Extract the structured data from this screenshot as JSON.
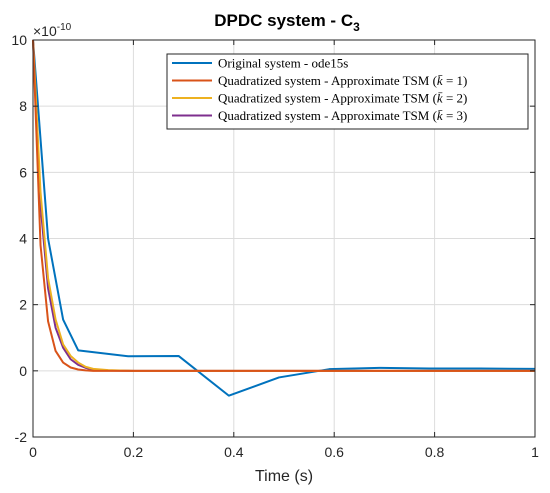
{
  "chart_data": {
    "type": "line",
    "title": "DPDC system - C",
    "title_subscript": "3",
    "xlabel": "Time (s)",
    "ylabel": "",
    "y_multiplier": {
      "base": "×10",
      "exponent": "-10"
    },
    "xlim": [
      0,
      1
    ],
    "ylim": [
      -2,
      10
    ],
    "xticks": [
      0,
      0.2,
      0.4,
      0.6,
      0.8,
      1
    ],
    "xtick_labels": [
      "0",
      "0.2",
      "0.4",
      "0.6",
      "0.8",
      "1"
    ],
    "yticks": [
      -2,
      0,
      2,
      4,
      6,
      8,
      10
    ],
    "ytick_labels": [
      "-2",
      "0",
      "2",
      "4",
      "6",
      "8",
      "10"
    ],
    "grid": true,
    "legend_position": "top-right",
    "series": [
      {
        "name": "Original system - ode15s",
        "color": "#0072BD",
        "x": [
          0,
          0.03,
          0.06,
          0.09,
          0.19,
          0.29,
          0.39,
          0.49,
          0.59,
          0.69,
          0.79,
          0.89,
          1.0
        ],
        "y": [
          10,
          4.0,
          1.55,
          0.62,
          0.44,
          0.45,
          -0.75,
          -0.2,
          0.05,
          0.09,
          0.07,
          0.07,
          0.06
        ]
      },
      {
        "name": "Quadratized system - Approximate TSM (k = 1)",
        "kbar": "1",
        "color": "#D95319",
        "x": [
          0,
          0.015,
          0.03,
          0.045,
          0.06,
          0.075,
          0.09,
          0.105,
          0.12,
          0.15,
          0.2,
          0.3,
          0.5,
          0.7,
          1.0
        ],
        "y": [
          10,
          3.8,
          1.5,
          0.6,
          0.25,
          0.1,
          0.04,
          0.015,
          0.0,
          0.0,
          0.0,
          0.0,
          0.0,
          0.0,
          0.0
        ]
      },
      {
        "name": "Quadratized system - Approximate TSM (k = 2)",
        "kbar": "2",
        "color": "#EDB120",
        "x": [
          0,
          0.015,
          0.03,
          0.045,
          0.06,
          0.075,
          0.09,
          0.105,
          0.12,
          0.15,
          0.2,
          0.3,
          0.5,
          0.7,
          1.0
        ],
        "y": [
          10,
          5.4,
          2.8,
          1.55,
          0.8,
          0.45,
          0.25,
          0.12,
          0.06,
          0.02,
          0.0,
          0.0,
          0.0,
          0.0,
          0.0
        ]
      },
      {
        "name": "Quadratized system - Approximate TSM (k = 3)",
        "kbar": "3",
        "color": "#7E2F8E",
        "x": [
          0,
          0.015,
          0.03,
          0.045,
          0.06,
          0.075,
          0.09,
          0.105,
          0.12,
          0.15,
          0.2,
          0.3,
          0.5,
          0.7,
          1.0
        ],
        "y": [
          10,
          5.0,
          2.5,
          1.3,
          0.7,
          0.35,
          0.18,
          0.09,
          0.04,
          0.01,
          0.0,
          0.0,
          0.0,
          0.0,
          0.0
        ]
      }
    ]
  }
}
